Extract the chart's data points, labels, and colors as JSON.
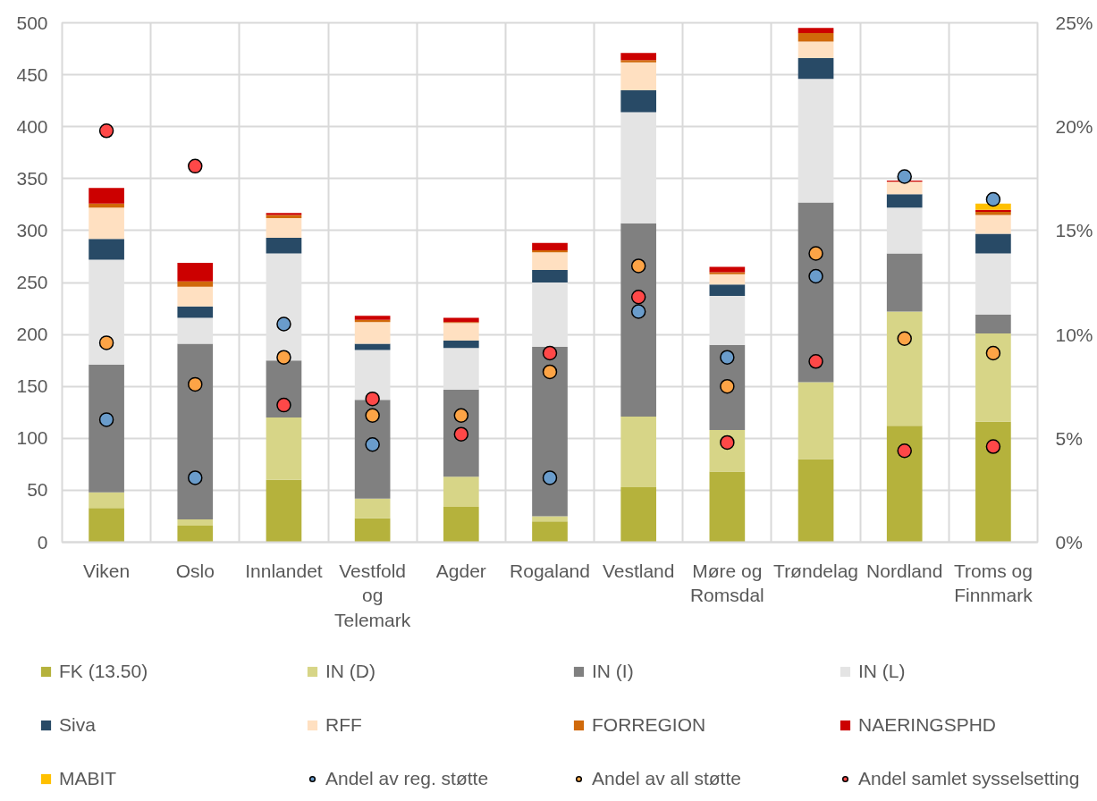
{
  "chart_data": {
    "type": "bar",
    "stacked": true,
    "categories": [
      "Viken",
      "Oslo",
      "Innlandet",
      "Vestfold og Telemark",
      "Agder",
      "Rogaland",
      "Vestland",
      "Møre og Romsdal",
      "Trøndelag",
      "Nordland",
      "Troms og Finnmark"
    ],
    "series": [
      {
        "name": "FK (13.50)",
        "color": "#b5b23c",
        "values": [
          33,
          16,
          60,
          23,
          34,
          20,
          53,
          68,
          80,
          112,
          116
        ]
      },
      {
        "name": "IN (D)",
        "color": "#d7d587",
        "values": [
          15,
          6,
          60,
          19,
          29,
          5,
          68,
          40,
          74,
          110,
          85
        ]
      },
      {
        "name": "IN (I)",
        "color": "#808080",
        "values": [
          123,
          169,
          55,
          95,
          84,
          163,
          186,
          82,
          173,
          56,
          18
        ]
      },
      {
        "name": "IN (L)",
        "color": "#e4e4e4",
        "values": [
          101,
          25,
          103,
          48,
          40,
          62,
          107,
          47,
          119,
          44,
          59
        ]
      },
      {
        "name": "Siva",
        "color": "#284a66",
        "values": [
          20,
          11,
          15,
          6,
          7,
          12,
          21,
          11,
          20,
          13,
          19
        ]
      },
      {
        "name": "RFF",
        "color": "#ffe0c1",
        "values": [
          30,
          19,
          19,
          21,
          17,
          17,
          27,
          10,
          16,
          12,
          18
        ]
      },
      {
        "name": "FORREGION",
        "color": "#d0690a",
        "values": [
          4,
          5,
          3,
          2,
          1,
          2,
          2,
          2,
          8,
          null,
          3
        ]
      },
      {
        "name": "NAERINGSPHD",
        "color": "#cc0000",
        "values": [
          15,
          18,
          2,
          4,
          4,
          7,
          7,
          5,
          5,
          1,
          2
        ]
      },
      {
        "name": "MABIT",
        "color": "#ffc000",
        "values": [
          null,
          null,
          null,
          null,
          null,
          null,
          null,
          null,
          null,
          null,
          6
        ]
      },
      {
        "name": "Andel av reg. støtte",
        "type": "scatter",
        "axis": "y2",
        "color": "#6a9ccb",
        "values": [
          5.9,
          3.1,
          10.5,
          4.7,
          null,
          3.1,
          11.1,
          8.9,
          12.8,
          17.6,
          16.5
        ]
      },
      {
        "name": "Andel av all støtte",
        "type": "scatter",
        "axis": "y2",
        "color": "#fda446",
        "values": [
          9.6,
          7.6,
          8.9,
          6.1,
          6.1,
          8.2,
          13.3,
          7.5,
          13.9,
          9.8,
          9.1
        ]
      },
      {
        "name": "Andel samlet sysselsetting",
        "type": "scatter",
        "axis": "y2",
        "color": "#ff4848",
        "values": [
          19.8,
          18.1,
          6.6,
          6.9,
          5.2,
          9.1,
          11.8,
          4.8,
          8.7,
          4.4,
          4.6
        ]
      }
    ],
    "ylim": [
      0,
      500
    ],
    "yticks": [
      0,
      50,
      100,
      150,
      200,
      250,
      300,
      350,
      400,
      450,
      500
    ],
    "y2lim": [
      0,
      25
    ],
    "y2ticks": [
      {
        "value": 0,
        "label": "0%"
      },
      {
        "value": 5,
        "label": "5%"
      },
      {
        "value": 10,
        "label": "10%"
      },
      {
        "value": 15,
        "label": "15%"
      },
      {
        "value": 20,
        "label": "20%"
      },
      {
        "value": 25,
        "label": "25%"
      }
    ],
    "grid": true,
    "legend": "bottom",
    "marker": "circle"
  }
}
